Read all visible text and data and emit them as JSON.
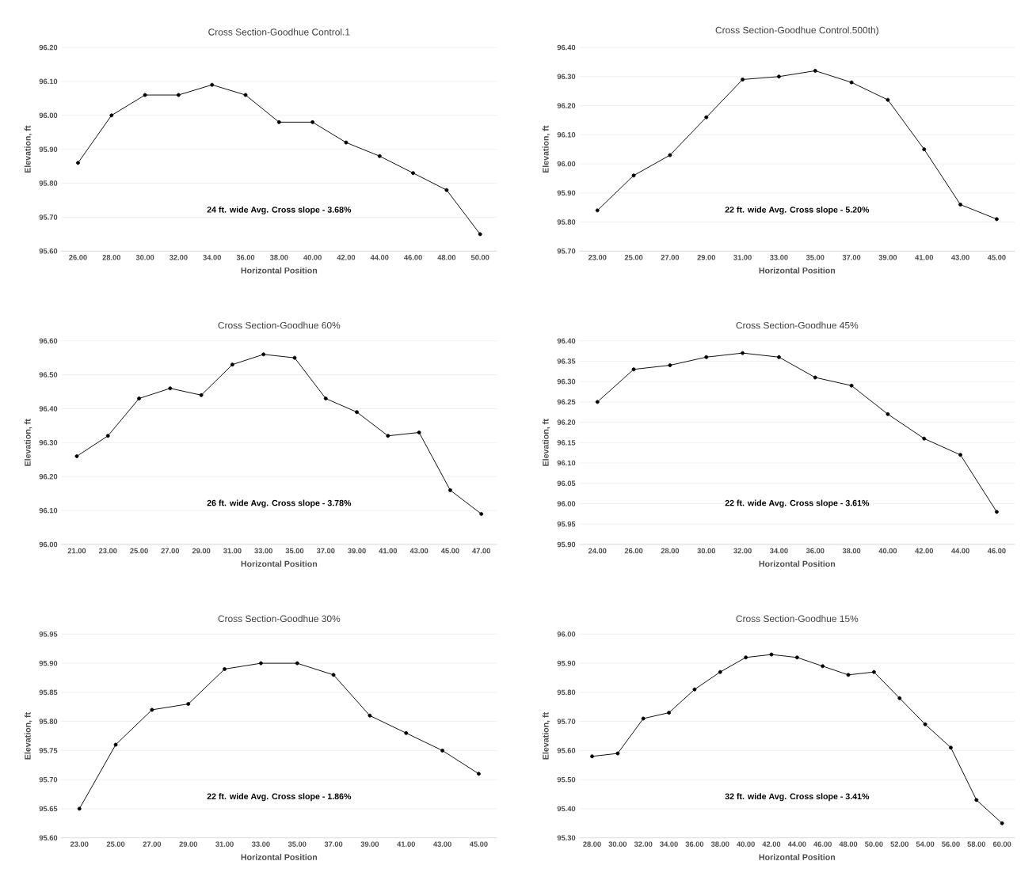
{
  "chart_data": [
    {
      "type": "line",
      "title": "Cross Section-Goodhue Control.1",
      "xlabel": "Horizontal Position",
      "ylabel": "Elevation, ft",
      "color": "#000000",
      "marker": "circle",
      "grid": "y",
      "categories": [
        "26.00",
        "28.00",
        "30.00",
        "32.00",
        "34.00",
        "36.00",
        "38.00",
        "40.00",
        "42.00",
        "44.00",
        "46.00",
        "48.00",
        "50.00"
      ],
      "values": [
        95.86,
        96.0,
        96.06,
        96.06,
        96.09,
        96.06,
        95.98,
        95.98,
        95.92,
        95.88,
        95.83,
        95.78,
        95.65
      ],
      "ylim": [
        95.6,
        96.2
      ],
      "yticks": [
        {
          "value": 95.6,
          "label": "95.60"
        },
        {
          "value": 95.7,
          "label": "95.70"
        },
        {
          "value": 95.8,
          "label": "95.80"
        },
        {
          "value": 95.9,
          "label": "95.90"
        },
        {
          "value": 96.0,
          "label": "96.00"
        },
        {
          "value": 96.1,
          "label": "96.10"
        },
        {
          "value": 96.2,
          "label": "96.20"
        }
      ],
      "annotations": [
        "24 ft. wide Avg. Cross slope - 3.68%"
      ]
    },
    {
      "type": "line",
      "title": "Cross Section-Goodhue Control.500th)",
      "xlabel": "Horizontal Position",
      "ylabel": "Elevation, ft",
      "color": "#000000",
      "marker": "circle",
      "grid": "y",
      "categories": [
        "23.00",
        "25.00",
        "27.00",
        "29.00",
        "31.00",
        "33.00",
        "35.00",
        "37.00",
        "39.00",
        "41.00",
        "43.00",
        "45.00"
      ],
      "values": [
        95.84,
        95.96,
        96.03,
        96.16,
        96.29,
        96.3,
        96.32,
        96.28,
        96.22,
        96.05,
        95.86,
        95.81
      ],
      "ylim": [
        95.7,
        96.4
      ],
      "yticks": [
        {
          "value": 95.7,
          "label": "95.70"
        },
        {
          "value": 95.8,
          "label": "95.80"
        },
        {
          "value": 95.9,
          "label": "95.90"
        },
        {
          "value": 96.0,
          "label": "96.00"
        },
        {
          "value": 96.1,
          "label": "96.10"
        },
        {
          "value": 96.2,
          "label": "96.20"
        },
        {
          "value": 96.3,
          "label": "96.30"
        },
        {
          "value": 96.4,
          "label": "96.40"
        }
      ],
      "annotations": [
        "22 ft. wide Avg. Cross slope - 5.20%"
      ]
    },
    {
      "type": "line",
      "title": "Cross Section-Goodhue 60%",
      "xlabel": "Horizontal Position",
      "ylabel": "Elevation, ft",
      "color": "#000000",
      "marker": "circle",
      "grid": "y",
      "categories": [
        "21.00",
        "23.00",
        "25.00",
        "27.00",
        "29.00",
        "31.00",
        "33.00",
        "35.00",
        "37.00",
        "39.00",
        "41.00",
        "43.00",
        "45.00",
        "47.00"
      ],
      "values": [
        96.26,
        96.32,
        96.43,
        96.46,
        96.44,
        96.53,
        96.56,
        96.55,
        96.43,
        96.39,
        96.32,
        96.33,
        96.16,
        96.09
      ],
      "ylim": [
        96.0,
        96.6
      ],
      "yticks": [
        {
          "value": 96.0,
          "label": "96.00"
        },
        {
          "value": 96.1,
          "label": "96.10"
        },
        {
          "value": 96.2,
          "label": "96.20"
        },
        {
          "value": 96.3,
          "label": "96.30"
        },
        {
          "value": 96.4,
          "label": "96.40"
        },
        {
          "value": 96.5,
          "label": "96.50"
        },
        {
          "value": 96.6,
          "label": "96.60"
        }
      ],
      "annotations": [
        "26 ft. wide Avg. Cross slope - 3.78%"
      ]
    },
    {
      "type": "line",
      "title": "Cross Section-Goodhue 45%",
      "xlabel": "Horizontal Position",
      "ylabel": "Elevation, ft",
      "color": "#000000",
      "marker": "circle",
      "grid": "y",
      "categories": [
        "24.00",
        "26.00",
        "28.00",
        "30.00",
        "32.00",
        "34.00",
        "36.00",
        "38.00",
        "40.00",
        "42.00",
        "44.00",
        "46.00"
      ],
      "values": [
        96.25,
        96.33,
        96.34,
        96.36,
        96.37,
        96.36,
        96.31,
        96.29,
        96.22,
        96.16,
        96.12,
        95.98
      ],
      "ylim": [
        95.9,
        96.4
      ],
      "yticks": [
        {
          "value": 95.9,
          "label": "95.90"
        },
        {
          "value": 95.95,
          "label": "95.95"
        },
        {
          "value": 96.0,
          "label": "96.00"
        },
        {
          "value": 96.05,
          "label": "96.05"
        },
        {
          "value": 96.1,
          "label": "96.10"
        },
        {
          "value": 96.15,
          "label": "96.15"
        },
        {
          "value": 96.2,
          "label": "96.20"
        },
        {
          "value": 96.25,
          "label": "96.25"
        },
        {
          "value": 96.3,
          "label": "96.30"
        },
        {
          "value": 96.35,
          "label": "96.35"
        },
        {
          "value": 96.4,
          "label": "96.40"
        }
      ],
      "annotations": [
        "22 ft. wide Avg. Cross slope - 3.61%"
      ]
    },
    {
      "type": "line",
      "title": "Cross Section-Goodhue 30%",
      "xlabel": "Horizontal Position",
      "ylabel": "Elevation, ft",
      "color": "#000000",
      "marker": "circle",
      "grid": "y",
      "categories": [
        "23.00",
        "25.00",
        "27.00",
        "29.00",
        "31.00",
        "33.00",
        "35.00",
        "37.00",
        "39.00",
        "41.00",
        "43.00",
        "45.00"
      ],
      "values": [
        95.65,
        95.76,
        95.82,
        95.83,
        95.89,
        95.9,
        95.9,
        95.88,
        95.81,
        95.78,
        95.75,
        95.71
      ],
      "ylim": [
        95.6,
        95.95
      ],
      "yticks": [
        {
          "value": 95.6,
          "label": "95.60"
        },
        {
          "value": 95.65,
          "label": "95.65"
        },
        {
          "value": 95.7,
          "label": "95.70"
        },
        {
          "value": 95.75,
          "label": "95.75"
        },
        {
          "value": 95.8,
          "label": "95.80"
        },
        {
          "value": 95.85,
          "label": "95.85"
        },
        {
          "value": 95.9,
          "label": "95.90"
        },
        {
          "value": 95.95,
          "label": "95.95"
        }
      ],
      "annotations": [
        "22 ft. wide Avg. Cross slope - 1.86%"
      ]
    },
    {
      "type": "line",
      "title": "Cross Section-Goodhue 15%",
      "xlabel": "Horizontal Position",
      "ylabel": "Elevation, ft",
      "color": "#000000",
      "marker": "circle",
      "grid": "y",
      "categories": [
        "28.00",
        "30.00",
        "32.00",
        "34.00",
        "36.00",
        "38.00",
        "40.00",
        "42.00",
        "44.00",
        "46.00",
        "48.00",
        "50.00",
        "52.00",
        "54.00",
        "56.00",
        "58.00",
        "60.00"
      ],
      "values": [
        95.58,
        95.59,
        95.71,
        95.73,
        95.81,
        95.87,
        95.92,
        95.93,
        95.92,
        95.89,
        95.86,
        95.87,
        95.78,
        95.69,
        95.61,
        95.43,
        95.35
      ],
      "ylim": [
        95.3,
        96.0
      ],
      "yticks": [
        {
          "value": 95.3,
          "label": "95.30"
        },
        {
          "value": 95.4,
          "label": "95.40"
        },
        {
          "value": 95.5,
          "label": "95.50"
        },
        {
          "value": 95.6,
          "label": "95.60"
        },
        {
          "value": 95.7,
          "label": "95.70"
        },
        {
          "value": 95.8,
          "label": "95.80"
        },
        {
          "value": 95.9,
          "label": "95.90"
        },
        {
          "value": 96.0,
          "label": "96.00"
        }
      ],
      "annotations": [
        "32 ft. wide Avg. Cross slope - 3.41%"
      ]
    }
  ]
}
